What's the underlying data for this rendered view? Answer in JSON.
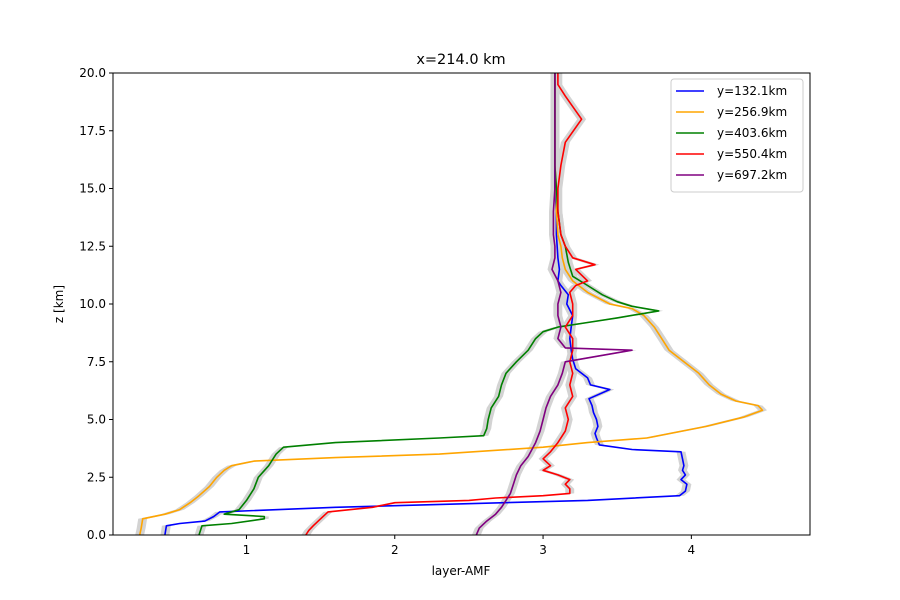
{
  "chart_data": {
    "type": "line",
    "title": "x=214.0 km",
    "xlabel": "layer-AMF",
    "ylabel": "z [km]",
    "xlim": [
      0.1,
      4.8
    ],
    "ylim": [
      0,
      20
    ],
    "xticks": [
      1,
      2,
      3,
      4
    ],
    "yticks": [
      0.0,
      2.5,
      5.0,
      7.5,
      10.0,
      12.5,
      15.0,
      17.5,
      20.0
    ],
    "grid": false,
    "legend_position": "top-right",
    "series": [
      {
        "name": "y=132.1km",
        "color": "#0000ff",
        "points": [
          [
            0.45,
            0
          ],
          [
            0.46,
            0.4
          ],
          [
            0.55,
            0.5
          ],
          [
            0.72,
            0.6
          ],
          [
            0.78,
            0.8
          ],
          [
            0.82,
            1.0
          ],
          [
            1.6,
            1.2
          ],
          [
            3.3,
            1.5
          ],
          [
            3.92,
            1.7
          ],
          [
            3.96,
            1.9
          ],
          [
            3.97,
            2.2
          ],
          [
            3.93,
            2.4
          ],
          [
            3.96,
            2.6
          ],
          [
            3.94,
            2.8
          ],
          [
            3.95,
            3.0
          ],
          [
            3.94,
            3.3
          ],
          [
            3.93,
            3.6
          ],
          [
            3.6,
            3.7
          ],
          [
            3.38,
            3.9
          ],
          [
            3.36,
            4.2
          ],
          [
            3.35,
            4.4
          ],
          [
            3.37,
            4.7
          ],
          [
            3.36,
            5.0
          ],
          [
            3.34,
            5.3
          ],
          [
            3.33,
            5.6
          ],
          [
            3.31,
            5.9
          ],
          [
            3.45,
            6.3
          ],
          [
            3.32,
            6.5
          ],
          [
            3.3,
            6.8
          ],
          [
            3.22,
            7.2
          ],
          [
            3.2,
            7.6
          ],
          [
            3.19,
            8.0
          ],
          [
            3.18,
            8.5
          ],
          [
            3.19,
            9.0
          ],
          [
            3.2,
            9.5
          ],
          [
            3.16,
            10.0
          ],
          [
            3.17,
            10.4
          ],
          [
            3.12,
            10.8
          ],
          [
            3.1,
            11.0
          ],
          [
            3.11,
            11.5
          ],
          [
            3.1,
            12.0
          ],
          [
            3.09,
            13.0
          ],
          [
            3.09,
            14.0
          ],
          [
            3.08,
            15.0
          ],
          [
            3.08,
            16.0
          ],
          [
            3.08,
            17.0
          ],
          [
            3.08,
            18.0
          ],
          [
            3.08,
            19.0
          ],
          [
            3.08,
            20.0
          ]
        ]
      },
      {
        "name": "y=256.9km",
        "color": "#ffa500",
        "points": [
          [
            0.28,
            0
          ],
          [
            0.29,
            0.3
          ],
          [
            0.3,
            0.7
          ],
          [
            0.45,
            0.9
          ],
          [
            0.55,
            1.1
          ],
          [
            0.62,
            1.4
          ],
          [
            0.68,
            1.7
          ],
          [
            0.75,
            2.1
          ],
          [
            0.8,
            2.5
          ],
          [
            0.85,
            2.8
          ],
          [
            0.9,
            3.0
          ],
          [
            1.05,
            3.2
          ],
          [
            1.6,
            3.35
          ],
          [
            2.3,
            3.5
          ],
          [
            3.0,
            3.8
          ],
          [
            3.3,
            4.0
          ],
          [
            3.7,
            4.2
          ],
          [
            4.1,
            4.7
          ],
          [
            4.35,
            5.1
          ],
          [
            4.48,
            5.4
          ],
          [
            4.45,
            5.6
          ],
          [
            4.3,
            5.8
          ],
          [
            4.2,
            6.1
          ],
          [
            4.12,
            6.5
          ],
          [
            4.05,
            7.0
          ],
          [
            3.95,
            7.5
          ],
          [
            3.85,
            8.0
          ],
          [
            3.8,
            8.5
          ],
          [
            3.75,
            9.0
          ],
          [
            3.68,
            9.5
          ],
          [
            3.6,
            9.8
          ],
          [
            3.45,
            10.0
          ],
          [
            3.3,
            10.5
          ],
          [
            3.2,
            11.0
          ],
          [
            3.15,
            11.5
          ],
          [
            3.13,
            12.0
          ],
          [
            3.12,
            12.5
          ],
          [
            3.1,
            13.0
          ],
          [
            3.09,
            14.0
          ],
          [
            3.09,
            15.0
          ],
          [
            3.08,
            16.0
          ],
          [
            3.08,
            17.0
          ],
          [
            3.08,
            18.0
          ],
          [
            3.08,
            19.0
          ],
          [
            3.08,
            20.0
          ]
        ]
      },
      {
        "name": "y=403.6km",
        "color": "#008000",
        "points": [
          [
            0.68,
            0
          ],
          [
            0.7,
            0.4
          ],
          [
            0.9,
            0.5
          ],
          [
            1.12,
            0.7
          ],
          [
            1.12,
            0.8
          ],
          [
            0.85,
            0.9
          ],
          [
            0.95,
            1.1
          ],
          [
            1.0,
            1.5
          ],
          [
            1.05,
            2.0
          ],
          [
            1.08,
            2.5
          ],
          [
            1.15,
            3.0
          ],
          [
            1.2,
            3.5
          ],
          [
            1.25,
            3.8
          ],
          [
            1.6,
            4.0
          ],
          [
            2.3,
            4.2
          ],
          [
            2.6,
            4.3
          ],
          [
            2.62,
            4.6
          ],
          [
            2.63,
            5.0
          ],
          [
            2.65,
            5.5
          ],
          [
            2.7,
            6.0
          ],
          [
            2.72,
            6.5
          ],
          [
            2.75,
            7.0
          ],
          [
            2.82,
            7.5
          ],
          [
            2.9,
            8.0
          ],
          [
            2.95,
            8.5
          ],
          [
            3.0,
            8.8
          ],
          [
            3.1,
            9.0
          ],
          [
            3.3,
            9.2
          ],
          [
            3.5,
            9.4
          ],
          [
            3.78,
            9.7
          ],
          [
            3.6,
            9.9
          ],
          [
            3.5,
            10.1
          ],
          [
            3.4,
            10.4
          ],
          [
            3.3,
            10.8
          ],
          [
            3.2,
            11.2
          ],
          [
            3.17,
            11.8
          ],
          [
            3.15,
            12.5
          ],
          [
            3.12,
            13.0
          ],
          [
            3.1,
            14.0
          ],
          [
            3.09,
            15.0
          ],
          [
            3.08,
            16.0
          ],
          [
            3.08,
            17.0
          ],
          [
            3.08,
            18.0
          ],
          [
            3.08,
            19.0
          ],
          [
            3.08,
            20.0
          ]
        ]
      },
      {
        "name": "y=550.4km",
        "color": "#ff0000",
        "points": [
          [
            1.4,
            0
          ],
          [
            1.42,
            0.2
          ],
          [
            1.45,
            0.4
          ],
          [
            1.5,
            0.7
          ],
          [
            1.55,
            1.0
          ],
          [
            1.85,
            1.2
          ],
          [
            2.0,
            1.4
          ],
          [
            2.5,
            1.5
          ],
          [
            2.68,
            1.6
          ],
          [
            3.0,
            1.7
          ],
          [
            3.18,
            1.8
          ],
          [
            3.18,
            2.0
          ],
          [
            3.15,
            2.2
          ],
          [
            3.18,
            2.4
          ],
          [
            3.1,
            2.6
          ],
          [
            3.0,
            2.8
          ],
          [
            3.05,
            3.0
          ],
          [
            3.0,
            3.3
          ],
          [
            3.05,
            3.6
          ],
          [
            3.1,
            4.0
          ],
          [
            3.15,
            4.5
          ],
          [
            3.17,
            5.0
          ],
          [
            3.15,
            5.5
          ],
          [
            3.2,
            6.0
          ],
          [
            3.18,
            6.5
          ],
          [
            3.2,
            7.0
          ],
          [
            3.18,
            7.5
          ],
          [
            3.2,
            8.0
          ],
          [
            3.2,
            8.5
          ],
          [
            3.15,
            9.0
          ],
          [
            3.2,
            9.5
          ],
          [
            3.2,
            10.0
          ],
          [
            3.18,
            10.5
          ],
          [
            3.22,
            10.8
          ],
          [
            3.3,
            11.0
          ],
          [
            3.22,
            11.5
          ],
          [
            3.35,
            11.7
          ],
          [
            3.2,
            12.0
          ],
          [
            3.15,
            12.5
          ],
          [
            3.12,
            13.0
          ],
          [
            3.1,
            14.0
          ],
          [
            3.1,
            15.0
          ],
          [
            3.12,
            16.0
          ],
          [
            3.15,
            17.0
          ],
          [
            3.26,
            18.0
          ],
          [
            3.15,
            19.0
          ],
          [
            3.1,
            19.5
          ],
          [
            3.1,
            20.0
          ]
        ]
      },
      {
        "name": "y=697.2km",
        "color": "#800080",
        "points": [
          [
            2.55,
            0
          ],
          [
            2.57,
            0.3
          ],
          [
            2.62,
            0.6
          ],
          [
            2.68,
            0.9
          ],
          [
            2.72,
            1.2
          ],
          [
            2.75,
            1.5
          ],
          [
            2.78,
            1.8
          ],
          [
            2.8,
            2.2
          ],
          [
            2.82,
            2.6
          ],
          [
            2.85,
            3.0
          ],
          [
            2.9,
            3.4
          ],
          [
            2.95,
            4.0
          ],
          [
            2.98,
            4.5
          ],
          [
            3.0,
            5.0
          ],
          [
            3.02,
            5.5
          ],
          [
            3.05,
            6.0
          ],
          [
            3.1,
            6.5
          ],
          [
            3.13,
            7.0
          ],
          [
            3.15,
            7.5
          ],
          [
            3.6,
            8.0
          ],
          [
            3.15,
            8.1
          ],
          [
            3.1,
            8.5
          ],
          [
            3.12,
            9.0
          ],
          [
            3.1,
            9.5
          ],
          [
            3.1,
            10.0
          ],
          [
            3.12,
            10.5
          ],
          [
            3.1,
            11.0
          ],
          [
            3.06,
            11.5
          ],
          [
            3.08,
            12.0
          ],
          [
            3.08,
            12.5
          ],
          [
            3.07,
            13.0
          ],
          [
            3.07,
            14.0
          ],
          [
            3.08,
            15.0
          ],
          [
            3.08,
            16.0
          ],
          [
            3.08,
            17.0
          ],
          [
            3.08,
            18.0
          ],
          [
            3.08,
            19.0
          ],
          [
            3.08,
            20.0
          ]
        ]
      }
    ]
  }
}
